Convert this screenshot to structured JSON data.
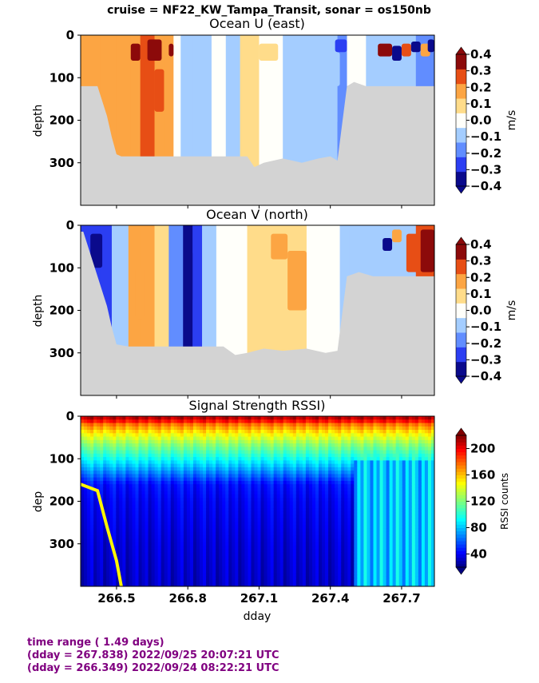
{
  "suptitle": "cruise = NF22_KW_Tampa_Transit,  sonar = os150nb",
  "footer": {
    "line1": "time range ( 1.49 days)",
    "line2": "(dday = 267.838) 2022/09/25 20:07:21 UTC",
    "line3": "(dday = 266.349) 2022/09/24 08:22:21 UTC"
  },
  "colors": {
    "no_data": "#d3d3d3",
    "footer_text": "#800080"
  },
  "chart_data": [
    {
      "type": "heatmap",
      "title": "Ocean U (east)",
      "xlabel": "",
      "ylabel": "depth",
      "xlim": [
        266.349,
        267.838
      ],
      "ylim": [
        400,
        0
      ],
      "xticks": [
        266.5,
        266.8,
        267.1,
        267.4,
        267.7
      ],
      "yticks": [
        0,
        100,
        200,
        300
      ],
      "ytick_labels": [
        "0",
        "100",
        "200",
        "300"
      ],
      "colorbar": {
        "label": "m/s",
        "colormap": "blue-white-red diverging",
        "ticks": [
          "0.4",
          "0.3",
          "0.2",
          "0.1",
          "0.0",
          "−0.1",
          "−0.2",
          "−0.3",
          "−0.4"
        ],
        "vmin": -0.4,
        "vmax": 0.4
      },
      "bottom_depth": [
        [
          266.349,
          120
        ],
        [
          266.36,
          120
        ],
        [
          266.42,
          120
        ],
        [
          266.46,
          190
        ],
        [
          266.48,
          240
        ],
        [
          266.5,
          280
        ],
        [
          266.52,
          285
        ],
        [
          266.6,
          285
        ],
        [
          266.8,
          285
        ],
        [
          266.95,
          285
        ],
        [
          267.0,
          285
        ],
        [
          267.05,
          285
        ],
        [
          267.08,
          310
        ],
        [
          267.12,
          300
        ],
        [
          267.2,
          290
        ],
        [
          267.28,
          300
        ],
        [
          267.35,
          290
        ],
        [
          267.4,
          285
        ],
        [
          267.43,
          295
        ],
        [
          267.47,
          120
        ],
        [
          267.5,
          110
        ],
        [
          267.55,
          120
        ],
        [
          267.838,
          120
        ]
      ],
      "bands": [
        [
          266.35,
          266.43,
          0.2
        ],
        [
          266.43,
          266.5,
          0.2
        ],
        [
          266.5,
          266.56,
          0.15
        ],
        [
          266.56,
          266.6,
          0.22
        ],
        [
          266.6,
          266.66,
          0.3
        ],
        [
          266.66,
          266.7,
          0.2
        ],
        [
          266.7,
          266.74,
          0.15
        ],
        [
          266.74,
          266.77,
          -0.02
        ],
        [
          266.77,
          266.82,
          -0.05
        ],
        [
          266.82,
          266.86,
          -0.12
        ],
        [
          266.86,
          266.9,
          -0.05
        ],
        [
          266.9,
          266.96,
          0.02
        ],
        [
          266.96,
          267.02,
          -0.05
        ],
        [
          267.02,
          267.1,
          0.05
        ],
        [
          267.1,
          267.2,
          0.03
        ],
        [
          267.2,
          267.3,
          -0.06
        ],
        [
          267.3,
          267.37,
          -0.1
        ],
        [
          267.37,
          267.43,
          -0.08
        ],
        [
          267.43,
          267.47,
          -0.15
        ],
        [
          267.47,
          267.55,
          -0.03
        ],
        [
          267.55,
          267.62,
          -0.12
        ],
        [
          267.62,
          267.7,
          -0.08
        ],
        [
          267.7,
          267.76,
          -0.05
        ],
        [
          267.76,
          267.838,
          -0.2
        ]
      ],
      "patches": [
        [
          266.63,
          266.69,
          10,
          60,
          0.42
        ],
        [
          266.56,
          266.6,
          20,
          60,
          0.35
        ],
        [
          266.62,
          266.66,
          60,
          140,
          0.3
        ],
        [
          266.66,
          266.7,
          80,
          180,
          0.25
        ],
        [
          266.72,
          266.74,
          20,
          50,
          0.35
        ],
        [
          267.1,
          267.18,
          20,
          60,
          0.12
        ],
        [
          267.3,
          267.38,
          60,
          120,
          -0.12
        ],
        [
          267.38,
          267.44,
          40,
          120,
          -0.1
        ],
        [
          267.43,
          267.47,
          200,
          290,
          -0.2
        ],
        [
          267.42,
          267.47,
          10,
          40,
          -0.25
        ],
        [
          267.6,
          267.66,
          20,
          50,
          0.42
        ],
        [
          267.66,
          267.7,
          25,
          60,
          -0.35
        ],
        [
          267.7,
          267.74,
          20,
          50,
          0.3
        ],
        [
          267.74,
          267.78,
          15,
          40,
          -0.42
        ],
        [
          267.78,
          267.82,
          20,
          50,
          0.2
        ],
        [
          267.81,
          267.838,
          10,
          40,
          -0.42
        ]
      ]
    },
    {
      "type": "heatmap",
      "title": "Ocean V (north)",
      "xlabel": "",
      "ylabel": "depth",
      "xlim": [
        266.349,
        267.838
      ],
      "ylim": [
        400,
        0
      ],
      "xticks": [
        266.5,
        266.8,
        267.1,
        267.4,
        267.7
      ],
      "yticks": [
        0,
        100,
        200,
        300
      ],
      "ytick_labels": [
        "0",
        "100",
        "200",
        "300"
      ],
      "colorbar": {
        "label": "m/s",
        "colormap": "blue-white-red diverging",
        "ticks": [
          "0.4",
          "0.3",
          "0.2",
          "0.1",
          "0.0",
          "−0.1",
          "−0.2",
          "−0.3",
          "−0.4"
        ],
        "vmin": -0.4,
        "vmax": 0.4
      },
      "bottom_depth": [
        [
          266.349,
          15
        ],
        [
          266.36,
          15
        ],
        [
          266.42,
          120
        ],
        [
          266.46,
          190
        ],
        [
          266.48,
          240
        ],
        [
          266.5,
          280
        ],
        [
          266.55,
          285
        ],
        [
          266.6,
          285
        ],
        [
          266.75,
          285
        ],
        [
          266.9,
          285
        ],
        [
          266.95,
          285
        ],
        [
          267.0,
          305
        ],
        [
          267.05,
          300
        ],
        [
          267.12,
          290
        ],
        [
          267.2,
          295
        ],
        [
          267.3,
          290
        ],
        [
          267.38,
          300
        ],
        [
          267.43,
          295
        ],
        [
          267.47,
          120
        ],
        [
          267.52,
          110
        ],
        [
          267.58,
          120
        ],
        [
          267.838,
          120
        ]
      ],
      "bands": [
        [
          266.35,
          266.43,
          -0.3
        ],
        [
          266.43,
          266.48,
          -0.25
        ],
        [
          266.48,
          266.55,
          -0.1
        ],
        [
          266.55,
          266.6,
          0.15
        ],
        [
          266.6,
          266.66,
          0.2
        ],
        [
          266.66,
          266.72,
          0.12
        ],
        [
          266.72,
          266.78,
          -0.15
        ],
        [
          266.78,
          266.82,
          -0.35
        ],
        [
          266.82,
          266.86,
          -0.25
        ],
        [
          266.86,
          266.92,
          -0.05
        ],
        [
          266.92,
          266.98,
          0.02
        ],
        [
          266.98,
          267.05,
          0.03
        ],
        [
          267.05,
          267.12,
          0.06
        ],
        [
          267.12,
          267.2,
          0.08
        ],
        [
          267.2,
          267.3,
          0.05
        ],
        [
          267.3,
          267.37,
          0.02
        ],
        [
          267.37,
          267.44,
          -0.03
        ],
        [
          267.44,
          267.48,
          -0.1
        ],
        [
          267.48,
          267.55,
          -0.05
        ],
        [
          267.55,
          267.62,
          -0.08
        ],
        [
          267.62,
          267.7,
          -0.1
        ],
        [
          267.7,
          267.76,
          -0.12
        ],
        [
          267.76,
          267.838,
          0.3
        ]
      ],
      "patches": [
        [
          266.39,
          266.44,
          20,
          100,
          -0.42
        ],
        [
          266.58,
          266.62,
          100,
          220,
          0.22
        ],
        [
          266.79,
          266.82,
          60,
          180,
          -0.42
        ],
        [
          267.15,
          267.22,
          20,
          80,
          0.22
        ],
        [
          267.22,
          267.3,
          60,
          200,
          0.2
        ],
        [
          267.08,
          267.12,
          60,
          110,
          0.12
        ],
        [
          267.62,
          267.66,
          30,
          60,
          -0.35
        ],
        [
          267.66,
          267.7,
          10,
          40,
          0.2
        ],
        [
          267.72,
          267.78,
          20,
          110,
          0.3
        ],
        [
          267.78,
          267.838,
          10,
          110,
          0.42
        ]
      ]
    },
    {
      "type": "heatmap",
      "title": "Signal Strength RSSI)",
      "xlabel": "dday",
      "ylabel": "dep",
      "xlim": [
        266.349,
        267.838
      ],
      "ylim": [
        400,
        0
      ],
      "xticks": [
        266.5,
        266.8,
        267.1,
        267.4,
        267.7
      ],
      "xtick_labels": [
        "266.5",
        "266.8",
        "267.1",
        "267.4",
        "267.7"
      ],
      "yticks": [
        0,
        100,
        200,
        300
      ],
      "ytick_labels": [
        "0",
        "100",
        "200",
        "300"
      ],
      "colorbar": {
        "label": "RSSI counts",
        "colormap": "jet",
        "ticks": [
          "200",
          "160",
          "120",
          "80",
          "40"
        ],
        "vmin": 20,
        "vmax": 220
      },
      "profile": [
        [
          0,
          215
        ],
        [
          10,
          200
        ],
        [
          20,
          175
        ],
        [
          40,
          150
        ],
        [
          70,
          120
        ],
        [
          100,
          95
        ],
        [
          130,
          70
        ],
        [
          160,
          45
        ],
        [
          200,
          40
        ],
        [
          300,
          35
        ],
        [
          400,
          32
        ]
      ],
      "shallow_bottom": {
        "start_dday": 267.5,
        "end_dday": 267.838,
        "deep_value": 75
      },
      "bottom_echo_track": [
        [
          266.349,
          160
        ],
        [
          266.42,
          175
        ],
        [
          266.46,
          260
        ],
        [
          266.5,
          340
        ],
        [
          266.52,
          400
        ]
      ]
    }
  ]
}
